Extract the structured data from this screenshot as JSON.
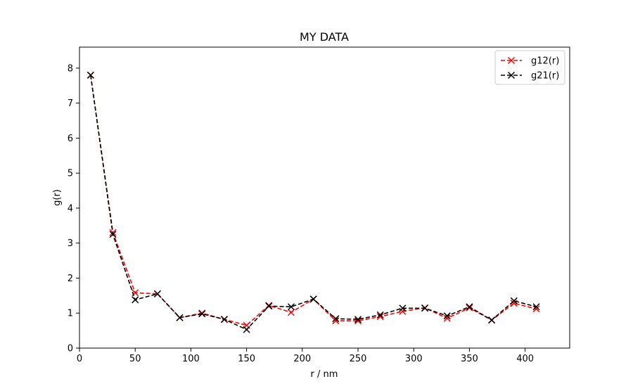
{
  "chart_data": {
    "type": "line",
    "title": "MY DATA",
    "xlabel": "r / nm",
    "ylabel": "g(r)",
    "xlim": [
      0,
      440
    ],
    "ylim": [
      0,
      8.6
    ],
    "xticks": [
      0,
      50,
      100,
      150,
      200,
      250,
      300,
      350,
      400
    ],
    "yticks": [
      0,
      1,
      2,
      3,
      4,
      5,
      6,
      7,
      8
    ],
    "grid": false,
    "legend_position": "top-right",
    "x": [
      10,
      30,
      50,
      70,
      90,
      110,
      130,
      150,
      170,
      190,
      210,
      230,
      250,
      270,
      290,
      310,
      330,
      350,
      370,
      390,
      410
    ],
    "series": [
      {
        "name": "g12(r)",
        "color": "#ff0000",
        "line_style": "dashed",
        "marker": "x",
        "values": [
          7.8,
          3.3,
          1.58,
          1.55,
          0.87,
          1.0,
          0.82,
          0.65,
          1.22,
          1.02,
          1.4,
          0.78,
          0.78,
          0.9,
          1.05,
          1.15,
          0.85,
          1.15,
          0.8,
          1.28,
          1.12
        ]
      },
      {
        "name": "g21(r)",
        "color": "#000000",
        "line_style": "dashed",
        "marker": "x",
        "values": [
          7.8,
          3.25,
          1.38,
          1.55,
          0.87,
          0.98,
          0.82,
          0.53,
          1.2,
          1.18,
          1.4,
          0.84,
          0.82,
          0.95,
          1.14,
          1.14,
          0.92,
          1.18,
          0.8,
          1.35,
          1.18
        ]
      }
    ]
  }
}
